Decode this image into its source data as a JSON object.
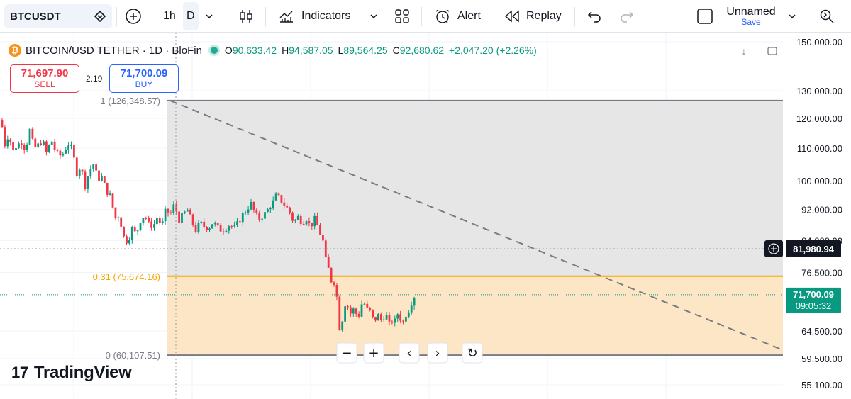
{
  "toolbar": {
    "symbol": "BTCUSDT",
    "interval_1h": "1h",
    "interval_d": "D",
    "indicators": "Indicators",
    "alert": "Alert",
    "replay": "Replay",
    "layout_name": "Unnamed",
    "save": "Save"
  },
  "legend": {
    "title": "BITCOIN/USD TETHER · 1D · BloFin",
    "coin_glyph": "₿",
    "open_key": "O",
    "open": "90,633.42",
    "high_key": "H",
    "high": "94,587.05",
    "low_key": "L",
    "low": "89,564.25",
    "close_key": "C",
    "close": "92,680.62",
    "change": "+2,047.20 (+2.26%)"
  },
  "trade": {
    "sell_price": "71,697.90",
    "sell_label": "SELL",
    "spread": "2.19",
    "buy_price": "71,700.09",
    "buy_label": "BUY"
  },
  "branding": {
    "logo": "TradingView"
  },
  "colors": {
    "up": "#089981",
    "down": "#f23645",
    "fib_top": "#e6e6e6",
    "fib_mid": "#fde6c5",
    "fib_line_mid": "#f7a600",
    "fib_line_outer": "#787b86",
    "price_tag": "#089981"
  },
  "chart_data": {
    "type": "candlestick",
    "title": "BITCOIN/USD TETHER · 1D · BloFin",
    "y_axis_ticks": [
      "150,000.00",
      "130,000.00",
      "120,000.00",
      "110,000.00",
      "100,000.00",
      "92,000.00",
      "84,000.00",
      "76,500.00",
      "64,500.00",
      "59,500.00",
      "55,100.00"
    ],
    "y_axis_tick_values": [
      150000,
      130000,
      120000,
      110000,
      100000,
      92000,
      84000,
      76500,
      64500,
      59500,
      55100
    ],
    "scale": "log",
    "crosshair_price": "81,980.94",
    "crosshair_value": 81980.94,
    "last_price": "71,700.09",
    "last_price_value": 71700.09,
    "countdown": "09:05:32",
    "fib_retracement": {
      "levels": [
        {
          "label": "1 (126,348.57)",
          "value": 126348.57
        },
        {
          "label": "0.31 (75,674.16)",
          "value": 75674.16
        },
        {
          "label": "0 (60,107.51)",
          "value": 60107.51
        }
      ]
    },
    "trend_line": {
      "from": 126348.57,
      "to": 61000
    }
  },
  "icons": {
    "nav_zoom_out": "−",
    "nav_zoom_in": "+",
    "nav_left": "‹",
    "nav_right": "›",
    "nav_reset": "↻"
  }
}
